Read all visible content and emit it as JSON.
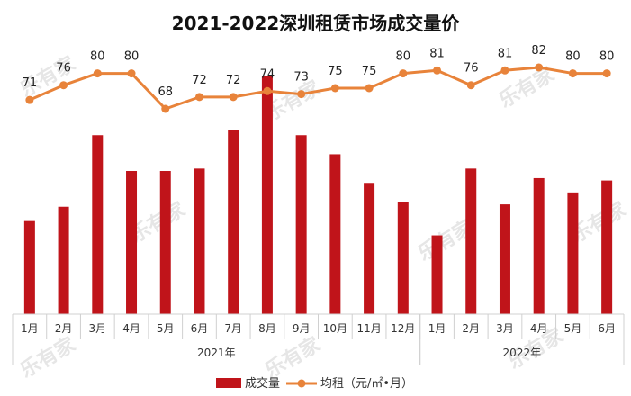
{
  "chart_data": {
    "type": "bar",
    "title": "2021-2022深圳租赁市场成交量价",
    "categories": [
      "1月",
      "2月",
      "3月",
      "4月",
      "5月",
      "6月",
      "7月",
      "8月",
      "9月",
      "10月",
      "11月",
      "12月",
      "1月",
      "2月",
      "3月",
      "4月",
      "5月",
      "6月"
    ],
    "groups": [
      {
        "label": "2021年",
        "start": 0,
        "end": 11
      },
      {
        "label": "2022年",
        "start": 12,
        "end": 17
      }
    ],
    "series": [
      {
        "name": "成交量",
        "type": "bar",
        "color": "#c0141a",
        "values": [
          39,
          45,
          75,
          60,
          60,
          61,
          77,
          100,
          75,
          67,
          55,
          47,
          33,
          61,
          46,
          57,
          51,
          56
        ]
      },
      {
        "name": "均租（元/㎡•月）",
        "type": "line",
        "color": "#e8833a",
        "values": [
          71,
          76,
          80,
          80,
          68,
          72,
          72,
          74,
          73,
          75,
          75,
          80,
          81,
          76,
          81,
          82,
          80,
          80
        ]
      }
    ],
    "legend_position": "bottom",
    "grid": false,
    "watermark": "乐有家"
  }
}
